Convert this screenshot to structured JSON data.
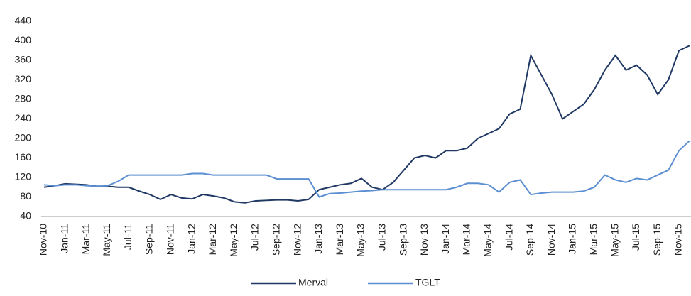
{
  "chart_data": {
    "type": "line",
    "categories": [
      "Nov-10",
      null,
      "Jan-11",
      null,
      "Mar-11",
      null,
      "May-11",
      null,
      "Jul-11",
      null,
      "Sep-11",
      null,
      "Nov-11",
      null,
      "Jan-12",
      null,
      "Mar-12",
      null,
      "May-12",
      null,
      "Jul-12",
      null,
      "Sep-12",
      null,
      "Nov-12",
      null,
      "Jan-13",
      null,
      "Mar-13",
      null,
      "May-13",
      null,
      "Jul-13",
      null,
      "Sep-13",
      null,
      "Nov-13",
      null,
      "Jan-14",
      null,
      "Mar-14",
      null,
      "May-14",
      null,
      "Jul-14",
      null,
      "Sep-14",
      null,
      "Nov-14",
      null,
      "Jan-15",
      null,
      "Mar-15",
      null,
      "May-15",
      null,
      "Jul-15",
      null,
      "Sep-15",
      null,
      "Nov-15",
      null
    ],
    "series": [
      {
        "name": "Merval",
        "color": "#203864",
        "values": [
          100,
          103,
          107,
          106,
          105,
          102,
          102,
          100,
          100,
          92,
          85,
          75,
          85,
          78,
          76,
          85,
          82,
          78,
          70,
          68,
          72,
          73,
          74,
          74,
          72,
          75,
          95,
          100,
          105,
          108,
          118,
          100,
          95,
          110,
          135,
          160,
          165,
          160,
          175,
          175,
          180,
          200,
          210,
          220,
          250,
          260,
          370,
          330,
          290,
          240,
          255,
          270,
          300,
          340,
          370,
          340,
          350,
          330,
          290,
          320,
          380,
          390
        ]
      },
      {
        "name": "TGLT",
        "color": "#5b8fd1",
        "values": [
          105,
          103,
          105,
          105,
          103,
          102,
          103,
          112,
          125,
          125,
          125,
          125,
          125,
          125,
          128,
          128,
          125,
          125,
          125,
          125,
          125,
          125,
          117,
          117,
          117,
          117,
          80,
          87,
          88,
          90,
          92,
          93,
          95,
          95,
          95,
          95,
          95,
          95,
          95,
          100,
          108,
          108,
          105,
          90,
          110,
          115,
          85,
          88,
          90,
          90,
          90,
          92,
          100,
          125,
          115,
          110,
          118,
          115,
          125,
          135,
          175,
          195
        ]
      }
    ],
    "ylim": [
      40,
      440
    ],
    "yticks": [
      40,
      80,
      120,
      160,
      200,
      240,
      280,
      320,
      360,
      400,
      440
    ],
    "legend": "bottom"
  }
}
